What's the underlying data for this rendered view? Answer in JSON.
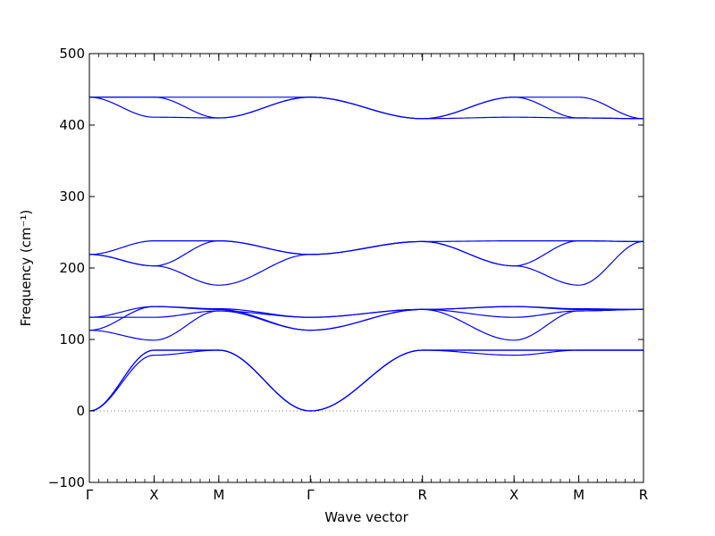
{
  "chart_data": {
    "type": "line",
    "xlabel": "Wave vector",
    "ylabel": "Frequency (cm⁻¹)",
    "ylim": [
      -100,
      500
    ],
    "yticks": [
      -100,
      0,
      100,
      200,
      300,
      400,
      500
    ],
    "ytick_labels": [
      "−100",
      "0",
      "100",
      "200",
      "300",
      "400",
      "500"
    ],
    "high_symmetry_points": [
      "Γ",
      "X",
      "M",
      "Γ",
      "R",
      "X",
      "M",
      "R"
    ],
    "segment_lengths": [
      0.5,
      0.5,
      0.7071,
      0.866,
      0.7071,
      0.5,
      0.5
    ],
    "grid": false,
    "legend": "none",
    "zero_line": {
      "y": 0,
      "style": "dotted"
    },
    "line_color": "#0000ff",
    "series": [
      {
        "values": [
          0,
          85,
          85,
          0,
          85,
          78,
          85,
          85
        ]
      },
      {
        "values": [
          0,
          78,
          85,
          0,
          85,
          85,
          85,
          85
        ]
      },
      {
        "values": [
          0,
          85,
          85,
          0,
          85,
          85,
          85,
          85
        ]
      },
      {
        "values": [
          113,
          99,
          140,
          113,
          142,
          99,
          140,
          142
        ]
      },
      {
        "values": [
          113,
          146,
          142,
          113,
          142,
          146,
          142,
          142
        ]
      },
      {
        "values": [
          131,
          131,
          140,
          131,
          142,
          131,
          140,
          142
        ]
      },
      {
        "values": [
          131,
          146,
          143,
          131,
          142,
          146,
          143,
          142
        ]
      },
      {
        "values": [
          219,
          203,
          176,
          219,
          237,
          203,
          176,
          237
        ]
      },
      {
        "values": [
          219,
          203,
          238,
          219,
          237,
          203,
          238,
          237
        ]
      },
      {
        "values": [
          219,
          238,
          238,
          219,
          237,
          238,
          238,
          237
        ]
      },
      {
        "values": [
          439,
          411,
          410,
          439,
          409,
          411,
          410,
          409
        ]
      },
      {
        "values": [
          439,
          439,
          410,
          439,
          409,
          439,
          410,
          409
        ]
      },
      {
        "values": [
          439,
          439,
          439,
          439,
          409,
          439,
          439,
          409
        ]
      }
    ]
  }
}
